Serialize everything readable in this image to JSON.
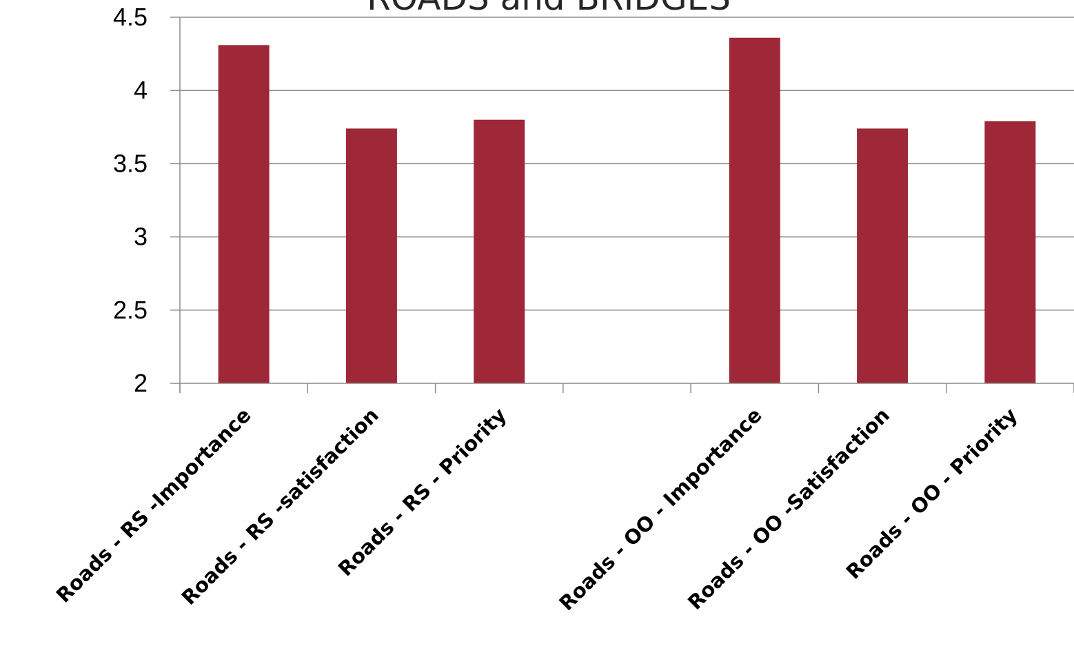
{
  "chart_data": {
    "type": "bar",
    "title": "ROADS and BRIDGES",
    "categories": [
      "Roads - RS -Importance",
      "Roads - RS -satisfaction",
      "Roads - RS - Priority",
      "",
      "Roads - OO - Importance",
      "Roads - OO -Satisfaction",
      "Roads - OO -  Priority"
    ],
    "values": [
      4.31,
      3.74,
      3.8,
      null,
      4.36,
      3.74,
      3.79
    ],
    "ylim": [
      2,
      4.5
    ],
    "yticks": [
      "2",
      "2.5",
      "3",
      "3.5",
      "4",
      "4.5"
    ],
    "ytick_values": [
      2,
      2.5,
      3,
      3.5,
      4,
      4.5
    ],
    "xlabel": "",
    "ylabel": "",
    "grid": true,
    "legend": "none",
    "bar_color": "#9e2837"
  }
}
